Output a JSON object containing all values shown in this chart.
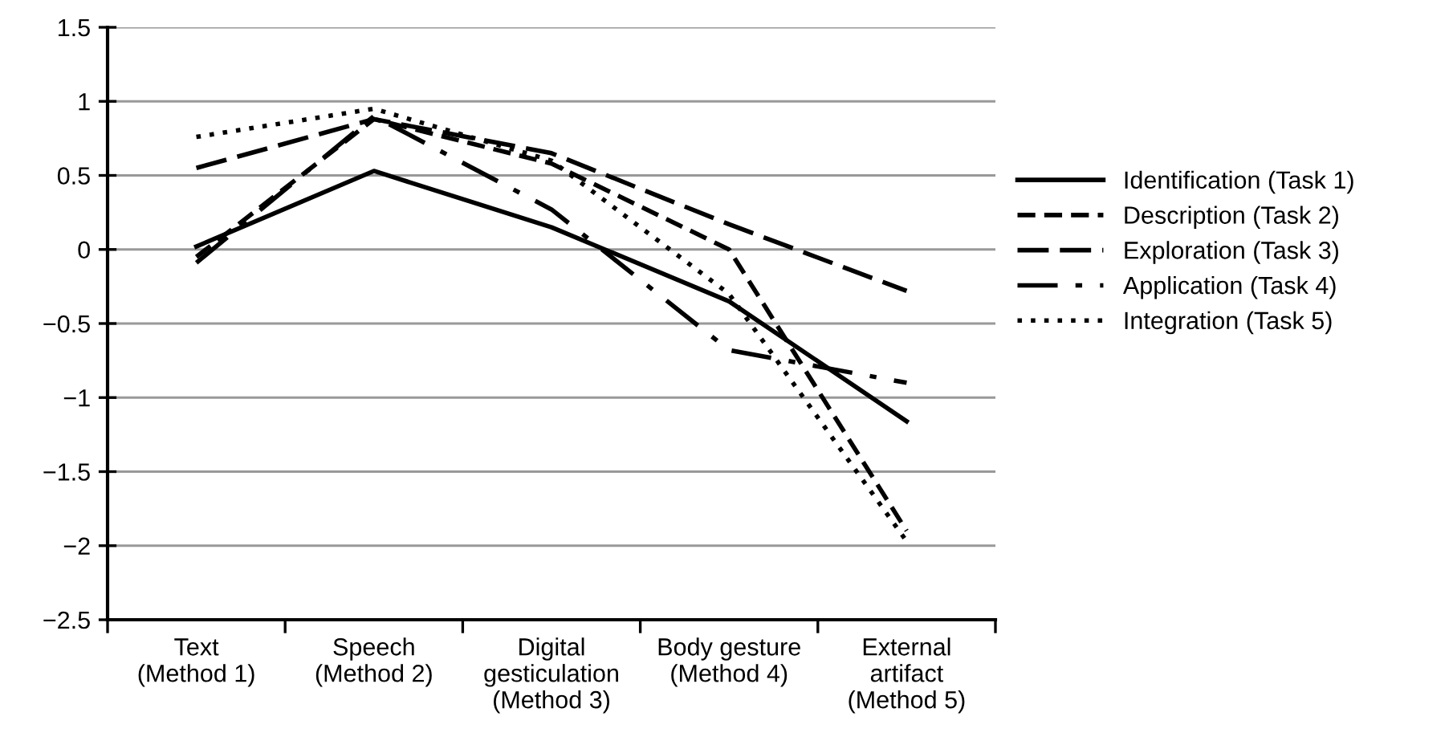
{
  "chart_data": {
    "type": "line",
    "categories": [
      "Text\n(Method 1)",
      "Speech\n(Method 2)",
      "Digital\ngesticulation\n(Method 3)",
      "Body gesture\n(Method 4)",
      "External\nartifact\n(Method 5)"
    ],
    "series": [
      {
        "name": "Identification (Task 1)",
        "color": "#000000",
        "line_style": "solid",
        "values": [
          0.02,
          0.53,
          0.15,
          -0.35,
          -1.16
        ]
      },
      {
        "name": "Description (Task 2)",
        "color": "#000000",
        "line_style": "dashed",
        "values": [
          -0.05,
          0.88,
          0.58,
          0.0,
          -1.9
        ]
      },
      {
        "name": "Exploration (Task 3)",
        "color": "#000000",
        "line_style": "longdash",
        "values": [
          0.55,
          0.88,
          0.65,
          0.17,
          -0.28
        ]
      },
      {
        "name": "Application (Task 4)",
        "color": "#000000",
        "line_style": "dashdot",
        "values": [
          -0.09,
          0.9,
          0.27,
          -0.68,
          -0.9
        ]
      },
      {
        "name": "Integration (Task 5)",
        "color": "#000000",
        "line_style": "dotted",
        "values": [
          0.76,
          0.95,
          0.6,
          -0.3,
          -1.97
        ]
      }
    ],
    "ylim": [
      -2.5,
      1.5
    ],
    "yticks": [
      {
        "value": -2.5,
        "label": "−2.5"
      },
      {
        "value": -2,
        "label": "−2"
      },
      {
        "value": -1.5,
        "label": "−1.5"
      },
      {
        "value": -1,
        "label": "−1"
      },
      {
        "value": -0.5,
        "label": "−0.5"
      },
      0,
      0.5,
      1,
      1.5
    ],
    "grid": "y",
    "legend": "right",
    "marker": "none"
  }
}
